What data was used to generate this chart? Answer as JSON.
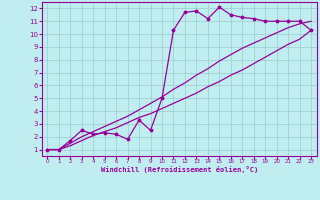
{
  "xlabel": "Windchill (Refroidissement éolien,°C)",
  "background_color": "#c0eef0",
  "grid_color": "#99cccc",
  "line_color": "#990099",
  "xlim": [
    -0.5,
    23.5
  ],
  "ylim": [
    0.5,
    12.5
  ],
  "xticks": [
    0,
    1,
    2,
    3,
    4,
    5,
    6,
    7,
    8,
    9,
    10,
    11,
    12,
    13,
    14,
    15,
    16,
    17,
    18,
    19,
    20,
    21,
    22,
    23
  ],
  "yticks": [
    1,
    2,
    3,
    4,
    5,
    6,
    7,
    8,
    9,
    10,
    11,
    12
  ],
  "line1_x": [
    0,
    1,
    2,
    3,
    4,
    5,
    6,
    7,
    8,
    9,
    10,
    11,
    12,
    13,
    14,
    15,
    16,
    17,
    18,
    19,
    20,
    21,
    22,
    23
  ],
  "line1_y": [
    1.0,
    1.0,
    1.7,
    2.5,
    2.2,
    2.3,
    2.2,
    1.8,
    3.3,
    2.5,
    5.0,
    10.3,
    11.7,
    11.8,
    11.2,
    12.1,
    11.5,
    11.3,
    11.2,
    11.0,
    11.0,
    11.0,
    11.0,
    10.3
  ],
  "line2_x": [
    0,
    1,
    2,
    3,
    4,
    5,
    6,
    7,
    8,
    9,
    10,
    11,
    12,
    13,
    14,
    15,
    16,
    17,
    18,
    19,
    20,
    21,
    22,
    23
  ],
  "line2_y": [
    1.0,
    1.0,
    1.5,
    2.0,
    2.4,
    2.8,
    3.2,
    3.6,
    4.1,
    4.6,
    5.1,
    5.7,
    6.2,
    6.8,
    7.3,
    7.9,
    8.4,
    8.9,
    9.3,
    9.7,
    10.1,
    10.5,
    10.8,
    11.0
  ],
  "line3_x": [
    0,
    1,
    2,
    3,
    4,
    5,
    6,
    7,
    8,
    9,
    10,
    11,
    12,
    13,
    14,
    15,
    16,
    17,
    18,
    19,
    20,
    21,
    22,
    23
  ],
  "line3_y": [
    1.0,
    1.0,
    1.3,
    1.7,
    2.1,
    2.4,
    2.7,
    3.1,
    3.5,
    3.8,
    4.2,
    4.6,
    5.0,
    5.4,
    5.9,
    6.3,
    6.8,
    7.2,
    7.7,
    8.2,
    8.7,
    9.2,
    9.6,
    10.3
  ]
}
